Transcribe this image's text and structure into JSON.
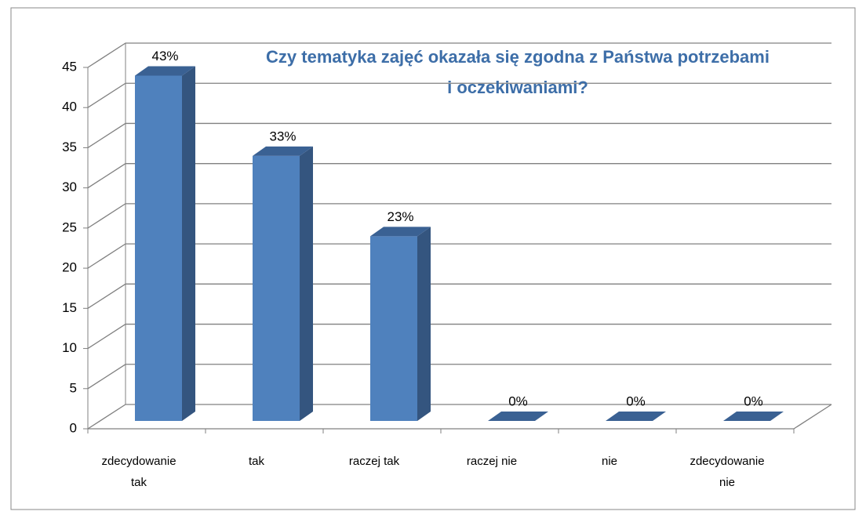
{
  "chart_data": {
    "type": "bar3d",
    "title": [
      "Czy tematyka zajęć okazała się zgodna z Państwa potrzebami",
      "i oczekiwaniami?"
    ],
    "categories": [
      "zdecydowanie tak",
      "tak",
      "raczej tak",
      "raczej nie",
      "nie",
      "zdecydowanie nie"
    ],
    "values": [
      43,
      33,
      23,
      0,
      0,
      0
    ],
    "value_labels": [
      "43%",
      "33%",
      "23%",
      "0%",
      "0%",
      "0%"
    ],
    "color": "#4f81bd",
    "ylim": [
      0,
      45
    ],
    "yticks": [
      0,
      5,
      10,
      15,
      20,
      25,
      30,
      35,
      40,
      45
    ],
    "grid": true
  }
}
